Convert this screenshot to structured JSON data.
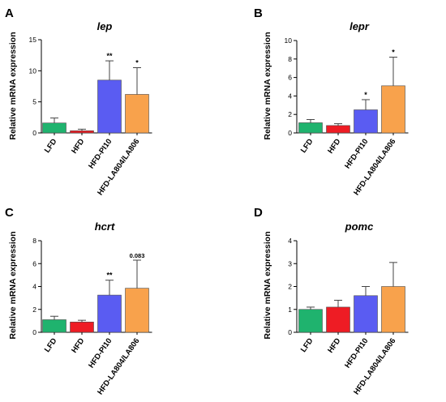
{
  "colors": [
    "#1fb36e",
    "#ee1c24",
    "#5a5cf2",
    "#f8a24c"
  ],
  "chart_data": [
    {
      "panel": "A",
      "title": "lep",
      "type": "bar",
      "ylabel": "Relative mRNA expression",
      "categories": [
        "LFD",
        "HFD",
        "HFD-PI10",
        "HFD-LA804/LA806"
      ],
      "values": [
        1.6,
        0.35,
        8.5,
        6.2
      ],
      "errors": [
        0.8,
        0.25,
        3.1,
        4.3
      ],
      "significance": [
        "",
        "",
        "**",
        "*"
      ],
      "ylim": [
        0,
        15
      ],
      "yticks": [
        "0",
        "5",
        "10",
        "15"
      ]
    },
    {
      "panel": "B",
      "title": "lepr",
      "type": "bar",
      "ylabel": "Relative mRNA expression",
      "categories": [
        "LFD",
        "HFD",
        "HFD-PI10",
        "HFD-LA804/LA806"
      ],
      "values": [
        1.1,
        0.8,
        2.5,
        5.1
      ],
      "errors": [
        0.35,
        0.2,
        1.1,
        3.1
      ],
      "significance": [
        "",
        "",
        "*",
        "*"
      ],
      "ylim": [
        0,
        10
      ],
      "yticks": [
        "0",
        "2",
        "4",
        "6",
        "8",
        "10"
      ]
    },
    {
      "panel": "C",
      "title": "hcrt",
      "type": "bar",
      "ylabel": "Relative mRNA expression",
      "categories": [
        "LFD",
        "HFD",
        "HFD-PI10",
        "HFD-LA804/LA806"
      ],
      "values": [
        1.1,
        0.9,
        3.25,
        3.85
      ],
      "errors": [
        0.3,
        0.15,
        1.3,
        2.45
      ],
      "significance": [
        "",
        "",
        "**",
        "0.083"
      ],
      "ylim": [
        0,
        8
      ],
      "yticks": [
        "0",
        "2",
        "4",
        "6",
        "8"
      ]
    },
    {
      "panel": "D",
      "title": "pomc",
      "type": "bar",
      "ylabel": "Relative mRNA expression",
      "categories": [
        "LFD",
        "HFD",
        "HFD-PI10",
        "HFD-LA804/LA806"
      ],
      "values": [
        1.0,
        1.1,
        1.6,
        2.0
      ],
      "errors": [
        0.1,
        0.3,
        0.4,
        1.05
      ],
      "significance": [
        "",
        "",
        "",
        ""
      ],
      "ylim": [
        0,
        4
      ],
      "yticks": [
        "0",
        "1",
        "2",
        "3",
        "4"
      ]
    }
  ]
}
